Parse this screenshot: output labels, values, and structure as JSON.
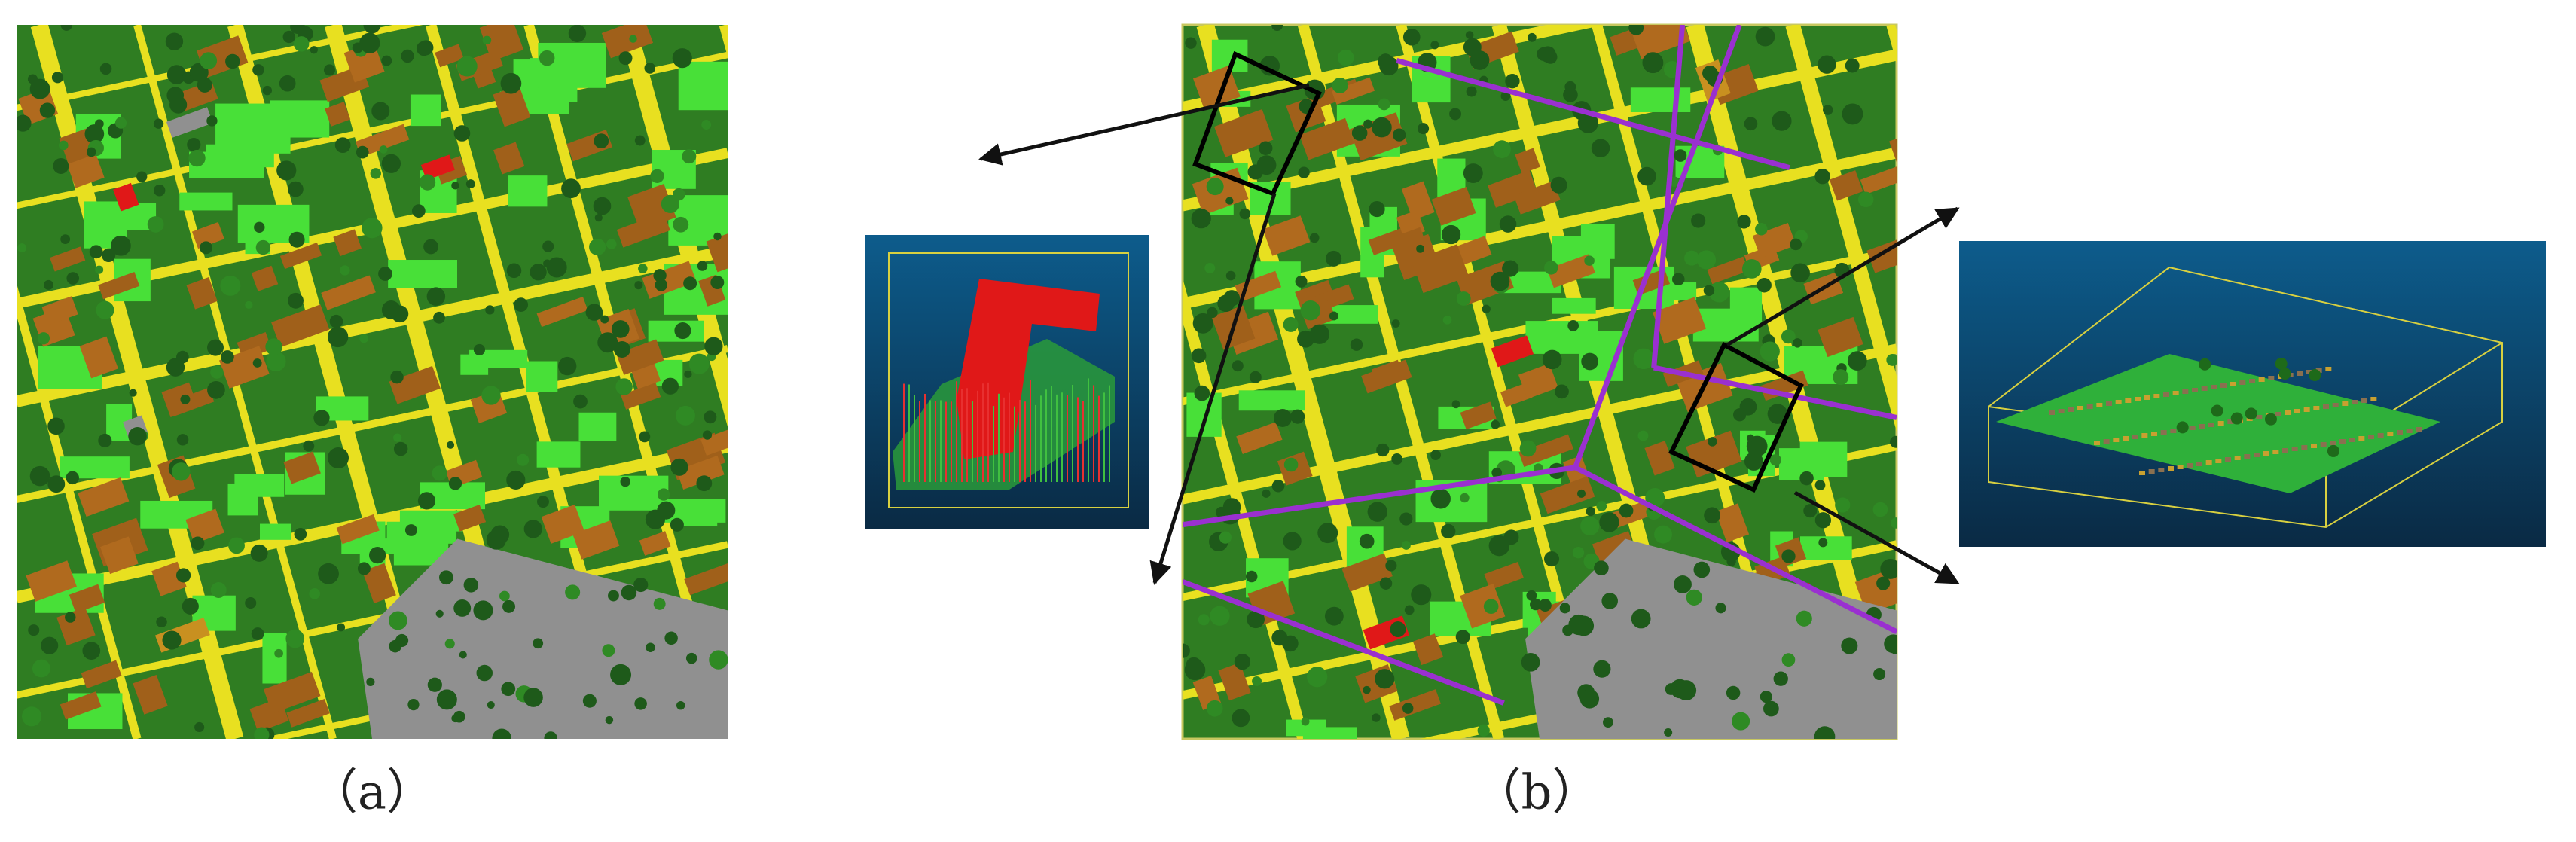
{
  "panels": [
    {
      "label": "（a）"
    },
    {
      "label": "（b）"
    }
  ]
}
